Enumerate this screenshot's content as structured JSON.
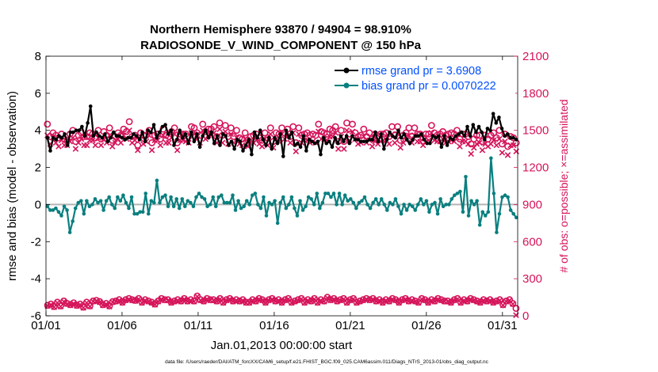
{
  "chart_data": {
    "type": "line",
    "title": "Northern Hemisphere 93870 / 94904 = 98.910%",
    "subtitle": "RADIOSONDE_V_WIND_COMPONENT @ 150 hPa",
    "xlabel": "Jan.01,2013 00:00:00 start",
    "ylabel_left": "rmse and bias (model - observation)",
    "ylabel_right": "# of obs: o=possible; ×=assimilated",
    "footnote": "data file: /Users/raeder/DAI/ATM_forcXX/CAM6_setup/f.e21.FHIST_BGC.f09_025.CAM6assim.011/Diags_NTrS_2013-01/obs_diag_output.nc",
    "x_ticks": [
      "01/01",
      "01/06",
      "01/11",
      "01/16",
      "01/21",
      "01/26",
      "01/31"
    ],
    "x_tick_days": [
      0,
      5,
      10,
      15,
      20,
      25,
      30
    ],
    "xlim": [
      0,
      31
    ],
    "ylim_left": [
      -6,
      8
    ],
    "ylim_right": [
      0,
      2100
    ],
    "yticks_left": [
      "-6",
      "-4",
      "-2",
      "0",
      "2",
      "4",
      "6",
      "8"
    ],
    "yticks_right": [
      "0",
      "300",
      "600",
      "900",
      "1200",
      "1500",
      "1800",
      "2100"
    ],
    "legend_position": "top-right",
    "colors": {
      "rmse": "#000000",
      "bias": "#0a7f7f",
      "obs": "#d5145a",
      "zero_line": "#b4b4b4"
    },
    "series": [
      {
        "name": "rmse grand pr = 3.6908",
        "axis": "left",
        "values": [
          3.6,
          2.9,
          3.6,
          3.5,
          3.7,
          3.6,
          3.8,
          3.2,
          3.9,
          3.9,
          4.0,
          4.0,
          4.2,
          3.7,
          4.4,
          5.3,
          3.7,
          3.9,
          3.7,
          3.6,
          3.8,
          3.4,
          3.6,
          3.9,
          3.7,
          3.7,
          3.6,
          3.5,
          3.6,
          3.6,
          3.8,
          3.7,
          3.5,
          3.9,
          3.4,
          4.0,
          3.9,
          4.3,
          3.6,
          3.9,
          4.2,
          4.3,
          3.8,
          4.0,
          3.2,
          3.5,
          4.0,
          3.6,
          3.8,
          3.3,
          3.9,
          3.4,
          3.8,
          3.1,
          3.7,
          4.0,
          3.6,
          3.9,
          3.3,
          3.7,
          3.2,
          3.8,
          3.7,
          3.2,
          3.4,
          3.0,
          3.5,
          3.4,
          2.9,
          3.2,
          3.5,
          2.7,
          3.9,
          3.6,
          4.0,
          3.5,
          3.2,
          3.6,
          3.0,
          3.6,
          3.3,
          3.8,
          2.6,
          4.0,
          3.6,
          3.9,
          3.2,
          3.3,
          3.1,
          3.7,
          2.9,
          3.5,
          3.4,
          3.3,
          3.4,
          2.7,
          3.6,
          3.3,
          3.4,
          3.1,
          3.6,
          3.3,
          3.7,
          3.4,
          3.7,
          3.3,
          3.7,
          3.5,
          3.5,
          3.4,
          3.4,
          3.4,
          3.5,
          3.5,
          3.9,
          3.4,
          3.8,
          3.0,
          3.5,
          3.9,
          3.7,
          3.6,
          4.0,
          3.6,
          3.8,
          3.5,
          3.3,
          3.5,
          3.7,
          3.7,
          3.8,
          3.5,
          3.3,
          3.3,
          3.7,
          3.6,
          3.7,
          3.1,
          3.7,
          3.2,
          3.6,
          3.5,
          3.7,
          3.8,
          3.9,
          3.7,
          4.2,
          3.7,
          4.3,
          3.9,
          4.2,
          3.9,
          3.5,
          4.1,
          4.0,
          4.9,
          4.4,
          4.7,
          4.1,
          3.7,
          3.8,
          3.6,
          3.6,
          3.5
        ]
      },
      {
        "name": "bias grand pr = 0.0070222",
        "axis": "left",
        "values": [
          -0.1,
          -0.3,
          -0.3,
          -0.2,
          -0.4,
          -0.6,
          -0.1,
          -0.3,
          -1.5,
          -0.9,
          -0.2,
          0.1,
          0.2,
          -0.5,
          0.2,
          -0.1,
          0.0,
          0.3,
          0.1,
          0.2,
          -0.3,
          0.2,
          0.4,
          0.0,
          -0.2,
          0.4,
          0.2,
          0.5,
          0.1,
          -0.2,
          0.4,
          -0.5,
          -0.5,
          -0.4,
          -0.4,
          0.6,
          -0.5,
          0.2,
          0.1,
          1.3,
          0.1,
          0.4,
          0.5,
          -0.1,
          0.4,
          -0.1,
          0.3,
          -0.2,
          0.3,
          -0.1,
          0.2,
          0.1,
          -0.1,
          0.4,
          0.6,
          0.4,
          0.3,
          -0.1,
          0.0,
          0.4,
          -0.1,
          0.4,
          0.5,
          0.1,
          0.1,
          0.1,
          0.5,
          -0.3,
          0.2,
          -0.2,
          -0.1,
          0.2,
          0.0,
          0.5,
          0.6,
          0.0,
          -0.2,
          0.4,
          -0.6,
          0.1,
          0.0,
          0.2,
          -1.0,
          0.1,
          0.4,
          -0.2,
          0.0,
          0.4,
          -0.2,
          -0.6,
          0.2,
          -0.3,
          -0.1,
          0.4,
          0.3,
          0.0,
          0.6,
          -0.2,
          0.1,
          0.6,
          0.6,
          0.4,
          0.6,
          0.0,
          0.6,
          0.0,
          0.5,
          0.2,
          0.3,
          0.1,
          -0.2,
          0.1,
          0.2,
          0.4,
          0.0,
          -0.2,
          0.1,
          0.3,
          0.0,
          0.3,
          0.0,
          -0.3,
          0.1,
          0.0,
          0.3,
          -0.1,
          -0.5,
          0.0,
          -0.3,
          0.0,
          -0.1,
          -0.3,
          0.0,
          0.3,
          0.0,
          0.2,
          -0.4,
          0.0,
          0.1,
          -0.5,
          0.3,
          -0.1,
          0.0,
          0.0,
          0.3,
          0.5,
          0.6,
          0.7,
          -0.4,
          1.5,
          -0.6,
          0.2,
          0.0,
          0.2,
          -1.1,
          -0.4,
          -0.6,
          -0.4,
          2.5,
          0.6,
          -1.5,
          -0.5,
          0.4,
          0.5,
          0.4,
          -0.3,
          -0.5,
          -0.7
        ]
      },
      {
        "name": "possible obs",
        "axis": "right",
        "marker": "o",
        "values": [
          1550,
          1450,
          1480,
          1460,
          1440,
          1470,
          1430,
          1420,
          1470,
          1500,
          1410,
          1460,
          1480,
          1450,
          1450,
          1480,
          1470,
          1440,
          1500,
          1430,
          1490,
          1460,
          1520,
          1420,
          1450,
          1480,
          1460,
          1510,
          1490,
          1570,
          1450,
          1460,
          1380,
          1480,
          1460,
          1460,
          1500,
          1400,
          1460,
          1470,
          1430,
          1510,
          1460,
          1450,
          1490,
          1520,
          1400,
          1470,
          1470,
          1470,
          1450,
          1530,
          1520,
          1480,
          1460,
          1550,
          1490,
          1510,
          1510,
          1530,
          1450,
          1560,
          1460,
          1540,
          1450,
          1520,
          1450,
          1500,
          1440,
          1430,
          1480,
          1420,
          1450,
          1460,
          1470,
          1440,
          1420,
          1480,
          1440,
          1520,
          1410,
          1480,
          1470,
          1520,
          1480,
          1510,
          1450,
          1530,
          1400,
          1520,
          1460,
          1470,
          1480,
          1460,
          1470,
          1460,
          1550,
          1490,
          1480,
          1470,
          1510,
          1500,
          1530,
          1410,
          1500,
          1410,
          1560,
          1470,
          1550,
          1480,
          1450,
          1460,
          1510,
          1450,
          1480,
          1430,
          1470,
          1450,
          1470,
          1470,
          1480,
          1450,
          1530,
          1460,
          1530,
          1420,
          1460,
          1480,
          1520,
          1450,
          1520,
          1470,
          1470,
          1440,
          1470,
          1470,
          1540,
          1480,
          1460,
          1470,
          1490,
          1460,
          1470,
          1480,
          1470,
          1500,
          1430,
          1470,
          1470,
          1450,
          1390,
          1430,
          1460,
          1460,
          1410,
          1460,
          1430,
          1460,
          1480,
          1440,
          1500,
          1390,
          1470,
          1370,
          1450,
          1440,
          1400
        ]
      },
      {
        "name": "assimilated obs",
        "axis": "right",
        "marker": "x",
        "values": [
          1460,
          1390,
          1440,
          1400,
          1370,
          1420,
          1380,
          1380,
          1410,
          1440,
          1350,
          1400,
          1430,
          1380,
          1380,
          1420,
          1420,
          1380,
          1440,
          1380,
          1430,
          1400,
          1460,
          1370,
          1400,
          1430,
          1400,
          1460,
          1430,
          1500,
          1400,
          1420,
          1340,
          1430,
          1390,
          1410,
          1460,
          1340,
          1420,
          1420,
          1380,
          1460,
          1400,
          1400,
          1440,
          1470,
          1340,
          1420,
          1420,
          1410,
          1400,
          1480,
          1470,
          1430,
          1400,
          1500,
          1430,
          1460,
          1460,
          1480,
          1400,
          1510,
          1400,
          1490,
          1390,
          1470,
          1400,
          1440,
          1390,
          1380,
          1430,
          1370,
          1400,
          1400,
          1420,
          1390,
          1370,
          1430,
          1380,
          1470,
          1360,
          1430,
          1410,
          1470,
          1430,
          1450,
          1400,
          1480,
          1330,
          1470,
          1400,
          1420,
          1420,
          1400,
          1410,
          1400,
          1490,
          1430,
          1430,
          1420,
          1450,
          1450,
          1480,
          1350,
          1450,
          1350,
          1500,
          1420,
          1490,
          1430,
          1390,
          1400,
          1450,
          1400,
          1420,
          1370,
          1410,
          1390,
          1410,
          1420,
          1420,
          1390,
          1470,
          1400,
          1470,
          1360,
          1400,
          1420,
          1460,
          1400,
          1460,
          1410,
          1410,
          1380,
          1410,
          1420,
          1480,
          1420,
          1410,
          1410,
          1430,
          1400,
          1410,
          1420,
          1410,
          1440,
          1370,
          1410,
          1410,
          1390,
          1310,
          1360,
          1390,
          1400,
          1340,
          1390,
          1370,
          1390,
          1420,
          1380,
          1430,
          1320,
          1410,
          1300,
          1380,
          1380,
          1330
        ]
      },
      {
        "name": "possible obs (lower)",
        "axis": "right",
        "marker": "o",
        "values": [
          85,
          95,
          75,
          110,
          80,
          120,
          100,
          90,
          105,
          85,
          95,
          70,
          110,
          80,
          120,
          125,
          115,
          90,
          100,
          80,
          115,
          120,
          130,
          110,
          130,
          140,
          130,
          125,
          140,
          110,
          130,
          120,
          110,
          95,
          120,
          140,
          130,
          130,
          110,
          120,
          130,
          120,
          140,
          120,
          130,
          120,
          160,
          130,
          120,
          140,
          130,
          130,
          120,
          140,
          110,
          130,
          140,
          120,
          130,
          120,
          130,
          110,
          110,
          130,
          120,
          140,
          130,
          110,
          130,
          140,
          120,
          130,
          110,
          130,
          140,
          110,
          120,
          130,
          140,
          110,
          130,
          120,
          140,
          110,
          130,
          120,
          150,
          130,
          140,
          120,
          130,
          140,
          110,
          130,
          140,
          110,
          120,
          130,
          140,
          130,
          140,
          120,
          130,
          110,
          130,
          120,
          140,
          130,
          110,
          130,
          140,
          120,
          130,
          120,
          110,
          140,
          130,
          110,
          130,
          120,
          140,
          130,
          120,
          120,
          110,
          130,
          140,
          110,
          130,
          120,
          140,
          130,
          120,
          110,
          130,
          120,
          130,
          110,
          120,
          130,
          90,
          120,
          130,
          100,
          60
        ]
      },
      {
        "name": "assimilated obs (lower)",
        "axis": "right",
        "marker": "x",
        "values": [
          80,
          90,
          70,
          105,
          75,
          115,
          95,
          85,
          100,
          80,
          90,
          65,
          105,
          75,
          115,
          120,
          110,
          85,
          95,
          75,
          110,
          115,
          125,
          105,
          125,
          135,
          125,
          120,
          135,
          105,
          125,
          115,
          105,
          90,
          115,
          135,
          125,
          125,
          105,
          115,
          125,
          115,
          135,
          115,
          125,
          115,
          155,
          125,
          115,
          135,
          125,
          125,
          115,
          135,
          105,
          125,
          135,
          115,
          125,
          115,
          125,
          105,
          105,
          125,
          115,
          135,
          125,
          105,
          125,
          135,
          115,
          125,
          105,
          125,
          135,
          105,
          115,
          125,
          135,
          105,
          125,
          115,
          135,
          105,
          125,
          115,
          145,
          125,
          135,
          115,
          125,
          135,
          105,
          125,
          135,
          105,
          115,
          125,
          135,
          125,
          135,
          115,
          125,
          105,
          125,
          115,
          135,
          125,
          105,
          125,
          135,
          115,
          125,
          115,
          105,
          135,
          125,
          105,
          125,
          115,
          135,
          125,
          115,
          115,
          105,
          125,
          135,
          105,
          125,
          115,
          135,
          125,
          115,
          105,
          125,
          115,
          125,
          105,
          115,
          125,
          85,
          115,
          125,
          95,
          5
        ]
      }
    ]
  }
}
